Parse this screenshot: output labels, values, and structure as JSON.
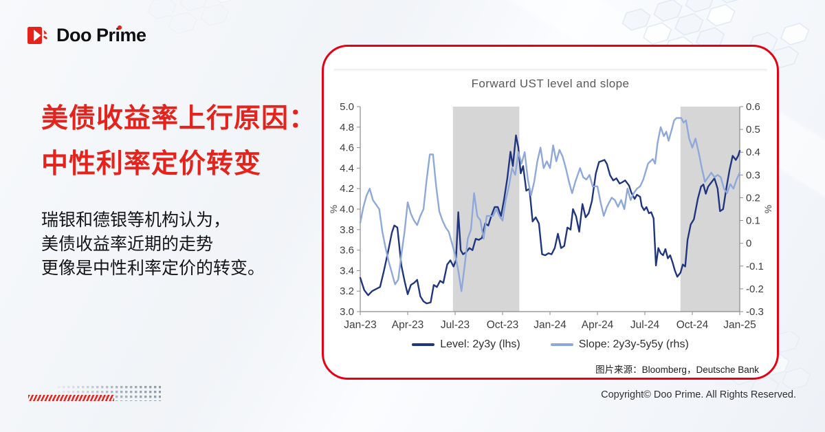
{
  "brand": {
    "logo_text": "Doo Prime"
  },
  "headline": {
    "line1": "美债收益率上行原因：",
    "line2": "中性利率定价转变",
    "color": "#e6221c"
  },
  "paragraph": {
    "lines": [
      "瑞银和德银等机构认为，",
      "美债收益率近期的走势",
      "更像是中性利率定价的转变。"
    ]
  },
  "card": {
    "border_color": "#e60014",
    "source_note": "图片来源：Bloomberg，Deutsche Bank"
  },
  "footer": {
    "copyright": "Copyright© Doo Prime. All Rights Reserved."
  },
  "chart_data": {
    "type": "line",
    "title": "Forward UST level and slope",
    "x_range": [
      0,
      24
    ],
    "x_ticks": [
      {
        "pos": 0,
        "label": "Jan-23"
      },
      {
        "pos": 3,
        "label": "Apr-23"
      },
      {
        "pos": 6,
        "label": "Jul-23"
      },
      {
        "pos": 9,
        "label": "Oct-23"
      },
      {
        "pos": 12,
        "label": "Jan-24"
      },
      {
        "pos": 15,
        "label": "Apr-24"
      },
      {
        "pos": 18,
        "label": "Jul-24"
      },
      {
        "pos": 21,
        "label": "Oct-24"
      },
      {
        "pos": 24,
        "label": "Jan-25"
      }
    ],
    "left_axis": {
      "label": "%",
      "min": 3.0,
      "max": 5.0,
      "ticks": [
        {
          "v": 5.0,
          "label": "5.0"
        },
        {
          "v": 4.8,
          "label": "4.8"
        },
        {
          "v": 4.6,
          "label": "4.6"
        },
        {
          "v": 4.4,
          "label": "4.4"
        },
        {
          "v": 4.2,
          "label": "4.2"
        },
        {
          "v": 4.0,
          "label": "4.0"
        },
        {
          "v": 3.8,
          "label": "3.8"
        },
        {
          "v": 3.6,
          "label": "3.6"
        },
        {
          "v": 3.4,
          "label": "3.4"
        },
        {
          "v": 3.2,
          "label": "3.2"
        },
        {
          "v": 3.0,
          "label": "3.0"
        }
      ]
    },
    "right_axis": {
      "label": "%",
      "min": -0.3,
      "max": 0.6,
      "ticks": [
        {
          "v": 0.6,
          "label": "0.6"
        },
        {
          "v": 0.5,
          "label": "0.5"
        },
        {
          "v": 0.4,
          "label": "0.4"
        },
        {
          "v": 0.3,
          "label": "0.3"
        },
        {
          "v": 0.2,
          "label": "0.2"
        },
        {
          "v": 0.1,
          "label": "0.1"
        },
        {
          "v": 0.0,
          "label": "0"
        },
        {
          "v": -0.1,
          "label": "-0.1"
        },
        {
          "v": -0.2,
          "label": "-0.2"
        },
        {
          "v": -0.3,
          "label": "-0.3"
        }
      ]
    },
    "shaded_bands": [
      [
        5.86,
        10.06
      ],
      [
        20.25,
        24
      ]
    ],
    "band_color": "#d6d6d7",
    "axis_color": "#8a8a8a",
    "series": [
      {
        "name": "Level: 2y3y (lhs)",
        "axis": "left",
        "color": "#20357f",
        "points": [
          [
            0,
            3.33
          ],
          [
            0.25,
            3.21
          ],
          [
            0.5,
            3.16
          ],
          [
            0.75,
            3.2
          ],
          [
            1,
            3.22
          ],
          [
            1.25,
            3.24
          ],
          [
            1.5,
            3.4
          ],
          [
            1.75,
            3.58
          ],
          [
            2,
            3.77
          ],
          [
            2.15,
            3.84
          ],
          [
            2.35,
            3.82
          ],
          [
            2.6,
            3.45
          ],
          [
            2.8,
            3.3
          ],
          [
            3,
            3.17
          ],
          [
            3.2,
            3.26
          ],
          [
            3.4,
            3.28
          ],
          [
            3.6,
            3.31
          ],
          [
            3.8,
            3.15
          ],
          [
            4,
            3.1
          ],
          [
            4.2,
            3.08
          ],
          [
            4.45,
            3.09
          ],
          [
            4.65,
            3.26
          ],
          [
            4.85,
            3.24
          ],
          [
            5.05,
            3.3
          ],
          [
            5.25,
            3.28
          ],
          [
            5.5,
            3.46
          ],
          [
            5.7,
            3.5
          ],
          [
            5.9,
            3.44
          ],
          [
            6.05,
            3.5
          ],
          [
            6.2,
            3.97
          ],
          [
            6.35,
            3.6
          ],
          [
            6.5,
            3.56
          ],
          [
            6.7,
            3.58
          ],
          [
            6.9,
            3.62
          ],
          [
            7.1,
            3.6
          ],
          [
            7.3,
            3.71
          ],
          [
            7.5,
            3.7
          ],
          [
            7.7,
            3.72
          ],
          [
            7.9,
            3.86
          ],
          [
            8.1,
            3.84
          ],
          [
            8.3,
            3.94
          ],
          [
            8.5,
            4.02
          ],
          [
            8.7,
            4.02
          ],
          [
            8.9,
            3.93
          ],
          [
            9.1,
            4.1
          ],
          [
            9.3,
            4.3
          ],
          [
            9.5,
            4.56
          ],
          [
            9.65,
            4.42
          ],
          [
            9.85,
            4.72
          ],
          [
            10,
            4.6
          ],
          [
            10.15,
            4.35
          ],
          [
            10.3,
            4.42
          ],
          [
            10.5,
            4.18
          ],
          [
            10.7,
            4.2
          ],
          [
            10.9,
            3.88
          ],
          [
            11.1,
            3.92
          ],
          [
            11.3,
            3.86
          ],
          [
            11.5,
            3.56
          ],
          [
            11.7,
            3.55
          ],
          [
            11.9,
            3.57
          ],
          [
            12.1,
            3.56
          ],
          [
            12.3,
            3.62
          ],
          [
            12.5,
            3.76
          ],
          [
            12.7,
            3.62
          ],
          [
            12.9,
            3.64
          ],
          [
            13.1,
            3.82
          ],
          [
            13.3,
            3.8
          ],
          [
            13.45,
            4
          ],
          [
            13.65,
            3.93
          ],
          [
            13.85,
            3.78
          ],
          [
            14.05,
            4.05
          ],
          [
            14.25,
            3.92
          ],
          [
            14.45,
            3.96
          ],
          [
            14.65,
            4.08
          ],
          [
            14.9,
            4.35
          ],
          [
            15.1,
            4.46
          ],
          [
            15.45,
            4.48
          ],
          [
            15.6,
            4.44
          ],
          [
            15.8,
            4.33
          ],
          [
            16,
            4.28
          ],
          [
            16.2,
            4.3
          ],
          [
            16.4,
            4.25
          ],
          [
            16.55,
            4.26
          ],
          [
            16.75,
            4.28
          ],
          [
            17,
            4.23
          ],
          [
            17.15,
            4.16
          ],
          [
            17.35,
            4.1
          ],
          [
            17.5,
            4.14
          ],
          [
            17.7,
            4.12
          ],
          [
            17.8,
            4.03
          ],
          [
            17.95,
            3.99
          ],
          [
            18.1,
            4.02
          ],
          [
            18.25,
            3.96
          ],
          [
            18.4,
            3.97
          ],
          [
            18.55,
            3.91
          ],
          [
            18.7,
            3.45
          ],
          [
            18.85,
            3.62
          ],
          [
            19,
            3.57
          ],
          [
            19.15,
            3.55
          ],
          [
            19.3,
            3.61
          ],
          [
            19.45,
            3.52
          ],
          [
            19.6,
            3.55
          ],
          [
            19.75,
            3.48
          ],
          [
            19.9,
            3.4
          ],
          [
            20.05,
            3.34
          ],
          [
            20.25,
            3.38
          ],
          [
            20.4,
            3.46
          ],
          [
            20.55,
            3.44
          ],
          [
            20.7,
            3.7
          ],
          [
            20.9,
            3.85
          ],
          [
            21.1,
            3.9
          ],
          [
            21.35,
            4.1
          ],
          [
            21.55,
            4.22
          ],
          [
            21.7,
            4.24
          ],
          [
            21.85,
            4.15
          ],
          [
            22,
            4.22
          ],
          [
            22.2,
            4.26
          ],
          [
            22.4,
            4.3
          ],
          [
            22.6,
            4.2
          ],
          [
            22.75,
            3.98
          ],
          [
            22.95,
            4
          ],
          [
            23.15,
            4.2
          ],
          [
            23.35,
            4.38
          ],
          [
            23.55,
            4.52
          ],
          [
            23.75,
            4.48
          ],
          [
            23.9,
            4.52
          ],
          [
            24,
            4.57
          ]
        ]
      },
      {
        "name": "Slope: 2y3y-5y5y (rhs)",
        "axis": "right",
        "color": "#8fa8da",
        "points": [
          [
            0,
            0.09
          ],
          [
            0.2,
            0.16
          ],
          [
            0.4,
            0.21
          ],
          [
            0.6,
            0.24
          ],
          [
            0.8,
            0.19
          ],
          [
            1,
            0.17
          ],
          [
            1.2,
            0.15
          ],
          [
            1.4,
            0.05
          ],
          [
            1.6,
            -0.02
          ],
          [
            1.8,
            -0.08
          ],
          [
            2,
            -0.13
          ],
          [
            2.2,
            -0.18
          ],
          [
            2.4,
            -0.16
          ],
          [
            2.6,
            -0.05
          ],
          [
            2.8,
            0.05
          ],
          [
            3,
            0.18
          ],
          [
            3.2,
            0.13
          ],
          [
            3.4,
            0.1
          ],
          [
            3.6,
            0.08
          ],
          [
            3.8,
            0.12
          ],
          [
            4,
            0.15
          ],
          [
            4.2,
            0.28
          ],
          [
            4.4,
            0.39
          ],
          [
            4.6,
            0.39
          ],
          [
            4.8,
            0.25
          ],
          [
            5,
            0.14
          ],
          [
            5.2,
            0.1
          ],
          [
            5.4,
            0.07
          ],
          [
            5.6,
            0.05
          ],
          [
            5.8,
            0
          ],
          [
            6,
            -0.05
          ],
          [
            6.2,
            -0.12
          ],
          [
            6.4,
            -0.21
          ],
          [
            6.6,
            -0.1
          ],
          [
            6.8,
            0.02
          ],
          [
            7,
            0.06
          ],
          [
            7.2,
            0.22
          ],
          [
            7.4,
            0.12
          ],
          [
            7.6,
            0.1
          ],
          [
            7.8,
            0.02
          ],
          [
            8,
            0.12
          ],
          [
            8.2,
            0.12
          ],
          [
            8.4,
            0.12
          ],
          [
            8.6,
            0.15
          ],
          [
            8.8,
            0.12
          ],
          [
            9,
            0.1
          ],
          [
            9.2,
            0.19
          ],
          [
            9.4,
            0.25
          ],
          [
            9.6,
            0.33
          ],
          [
            9.8,
            0.3
          ],
          [
            10,
            0.4
          ],
          [
            10.2,
            0.35
          ],
          [
            10.4,
            0.4
          ],
          [
            10.6,
            0.28
          ],
          [
            10.8,
            0.21
          ],
          [
            11,
            0.27
          ],
          [
            11.2,
            0.36
          ],
          [
            11.4,
            0.42
          ],
          [
            11.6,
            0.33
          ],
          [
            11.8,
            0.36
          ],
          [
            12,
            0.33
          ],
          [
            12.2,
            0.43
          ],
          [
            12.4,
            0.36
          ],
          [
            12.6,
            0.41
          ],
          [
            12.8,
            0.38
          ],
          [
            13,
            0.33
          ],
          [
            13.2,
            0.27
          ],
          [
            13.4,
            0.22
          ],
          [
            13.6,
            0.27
          ],
          [
            13.9,
            0.33
          ],
          [
            14.1,
            0.29
          ],
          [
            14.3,
            0.28
          ],
          [
            14.5,
            0.3
          ],
          [
            14.7,
            0.25
          ],
          [
            15,
            0.25
          ],
          [
            15.2,
            0.18
          ],
          [
            15.4,
            0.12
          ],
          [
            15.6,
            0.16
          ],
          [
            15.9,
            0.2
          ],
          [
            16.1,
            0.19
          ],
          [
            16.3,
            0.16
          ],
          [
            16.5,
            0.19
          ],
          [
            16.7,
            0.15
          ],
          [
            16.9,
            0.24
          ],
          [
            17.1,
            0.19
          ],
          [
            17.3,
            0.22
          ],
          [
            17.5,
            0.24
          ],
          [
            17.7,
            0.25
          ],
          [
            17.9,
            0.28
          ],
          [
            18.2,
            0.35
          ],
          [
            18.5,
            0.37
          ],
          [
            18.65,
            0.35
          ],
          [
            18.8,
            0.44
          ],
          [
            19,
            0.51
          ],
          [
            19.2,
            0.47
          ],
          [
            19.35,
            0.49
          ],
          [
            19.5,
            0.45
          ],
          [
            19.7,
            0.5
          ],
          [
            19.85,
            0.54
          ],
          [
            20,
            0.55
          ],
          [
            20.15,
            0.55
          ],
          [
            20.3,
            0.55
          ],
          [
            20.45,
            0.53
          ],
          [
            20.6,
            0.54
          ],
          [
            20.8,
            0.46
          ],
          [
            21,
            0.42
          ],
          [
            21.2,
            0.46
          ],
          [
            21.4,
            0.4
          ],
          [
            21.6,
            0.33
          ],
          [
            21.8,
            0.27
          ],
          [
            22,
            0.29
          ],
          [
            22.2,
            0.31
          ],
          [
            22.4,
            0.29
          ],
          [
            22.6,
            0.3
          ],
          [
            22.8,
            0.29
          ],
          [
            23,
            0.24
          ],
          [
            23.2,
            0.22
          ],
          [
            23.4,
            0.26
          ],
          [
            23.6,
            0.24
          ],
          [
            23.8,
            0.28
          ],
          [
            24,
            0.31
          ]
        ]
      }
    ],
    "legend_position": "bottom",
    "grid": false
  }
}
